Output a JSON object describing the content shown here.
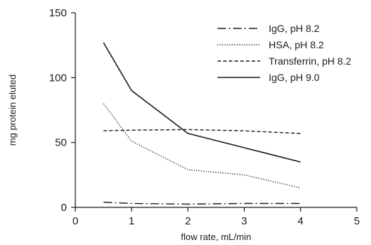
{
  "chart_data": {
    "type": "line",
    "title": "",
    "xlabel": "flow rate, mL/min",
    "ylabel": "mg protein eluted",
    "xlim": [
      0,
      5
    ],
    "ylim": [
      0,
      150
    ],
    "xticks": [
      "0",
      "1",
      "2",
      "3",
      "4",
      "5"
    ],
    "yticks": [
      "0",
      "50",
      "100",
      "150"
    ],
    "grid": false,
    "legend_position": "top-right",
    "series": [
      {
        "name": "IgG, pH 8.2",
        "style": "dash-dot",
        "color": "#1a1a1a",
        "x": [
          0.5,
          1,
          2,
          3,
          4
        ],
        "y": [
          4,
          3,
          2.5,
          3,
          3
        ]
      },
      {
        "name": "HSA, pH 8.2",
        "style": "dotted",
        "color": "#1a1a1a",
        "x": [
          0.5,
          1,
          2,
          3,
          4
        ],
        "y": [
          80,
          51,
          29,
          25,
          15
        ]
      },
      {
        "name": "Transferrin, pH 8.2",
        "style": "dashed",
        "color": "#1a1a1a",
        "x": [
          0.5,
          1,
          2,
          3,
          4
        ],
        "y": [
          59,
          59.5,
          60,
          59,
          57
        ]
      },
      {
        "name": "IgG, pH 9.0",
        "style": "solid",
        "color": "#1a1a1a",
        "x": [
          0.5,
          1,
          2,
          3,
          4
        ],
        "y": [
          127,
          90,
          57,
          46,
          35
        ]
      }
    ]
  }
}
